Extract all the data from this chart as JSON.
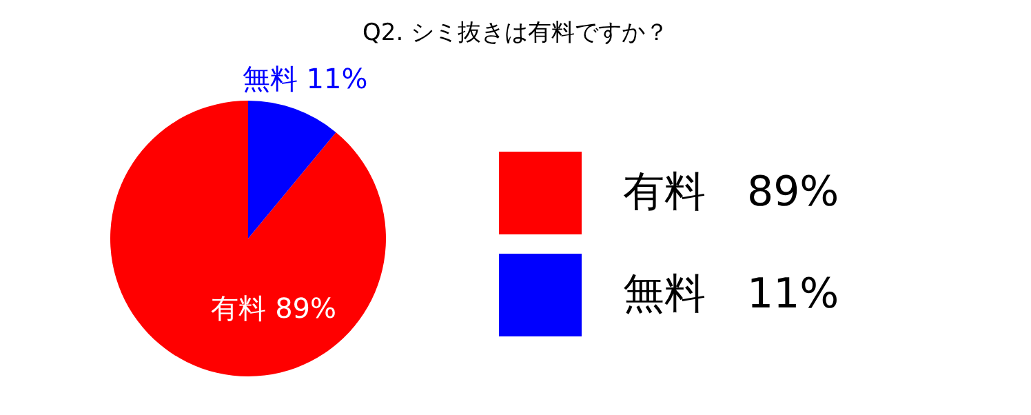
{
  "chart_data": {
    "type": "pie",
    "title": "Q2. シミ抜きは有料ですか？",
    "categories": [
      "有料",
      "無料"
    ],
    "values": [
      89,
      11
    ],
    "value_labels": [
      "89%",
      "11%"
    ],
    "colors": [
      "#ff0000",
      "#0000ff"
    ],
    "legend": "right"
  }
}
